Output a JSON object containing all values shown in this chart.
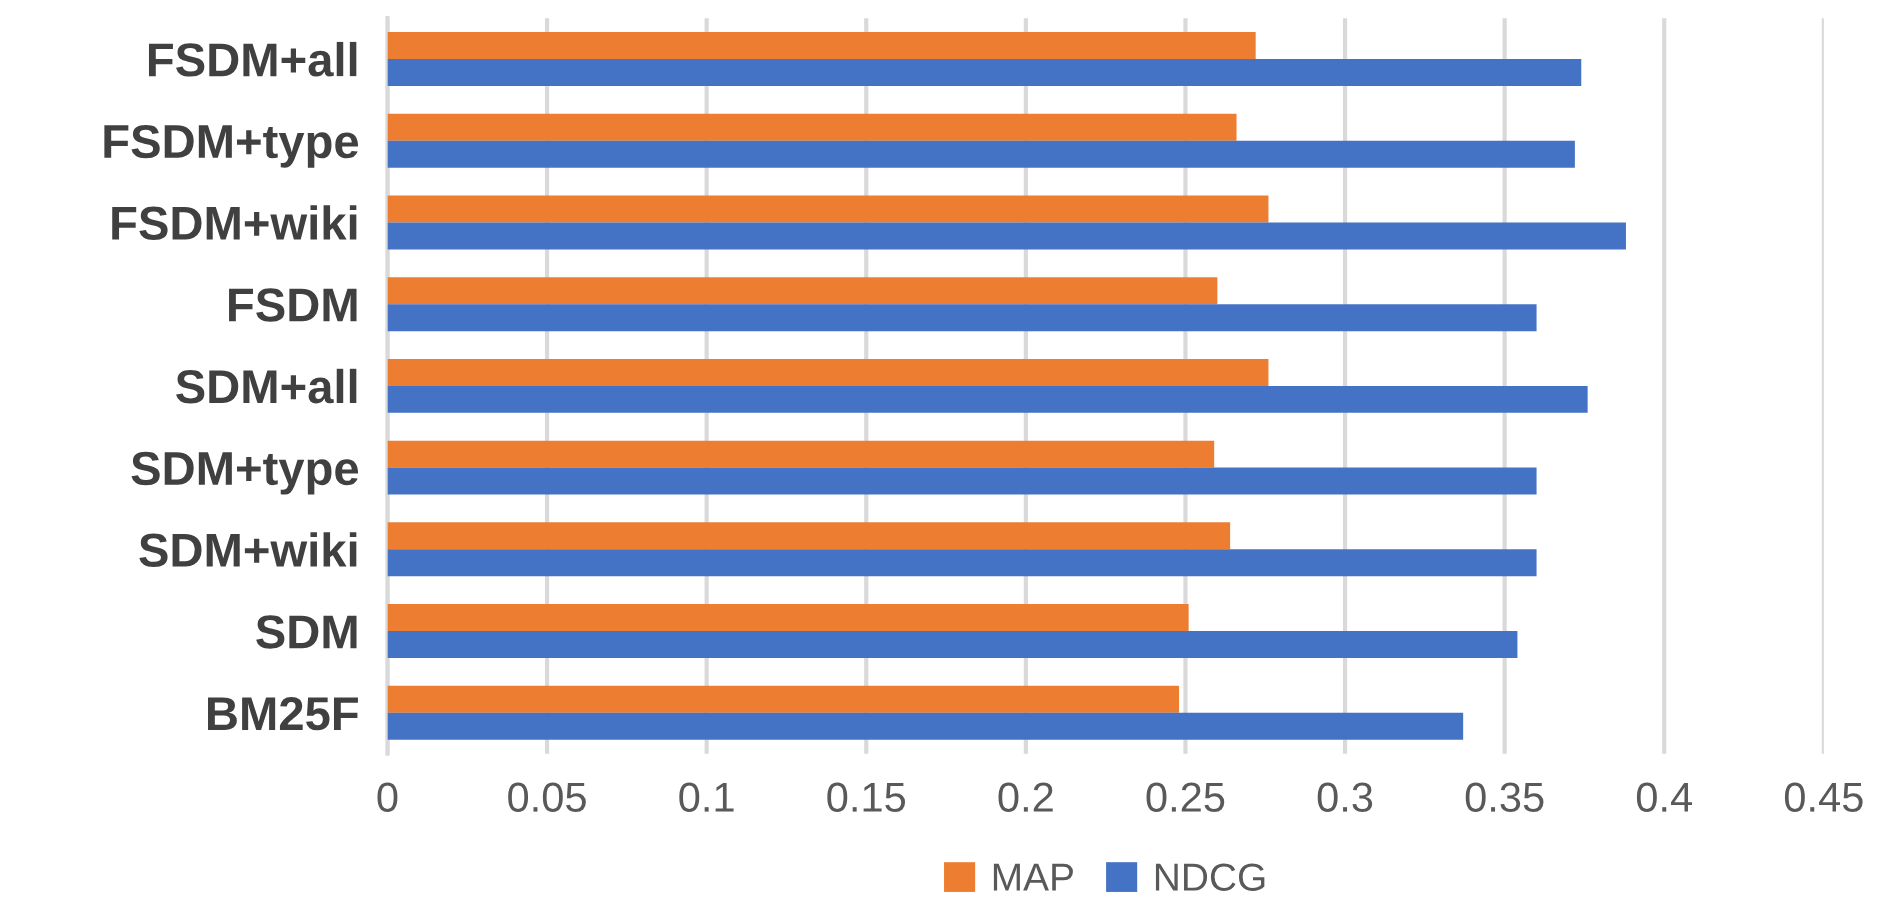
{
  "chart_data": {
    "type": "bar",
    "orientation": "horizontal",
    "categories": [
      "FSDM+all",
      "FSDM+type",
      "FSDM+wiki",
      "FSDM",
      "SDM+all",
      "SDM+type",
      "SDM+wiki",
      "SDM",
      "BM25F"
    ],
    "series": [
      {
        "name": "MAP",
        "color": "#ed7d31",
        "values": [
          0.272,
          0.266,
          0.276,
          0.26,
          0.276,
          0.259,
          0.264,
          0.251,
          0.248
        ]
      },
      {
        "name": "NDCG",
        "color": "#4472c4",
        "values": [
          0.374,
          0.372,
          0.388,
          0.36,
          0.376,
          0.36,
          0.36,
          0.354,
          0.337
        ]
      }
    ],
    "xlim": [
      0,
      0.45
    ],
    "xticks": [
      0,
      0.05,
      0.1,
      0.15,
      0.2,
      0.25,
      0.3,
      0.35,
      0.4,
      0.45
    ],
    "grid": "x",
    "legend": "bottom"
  }
}
